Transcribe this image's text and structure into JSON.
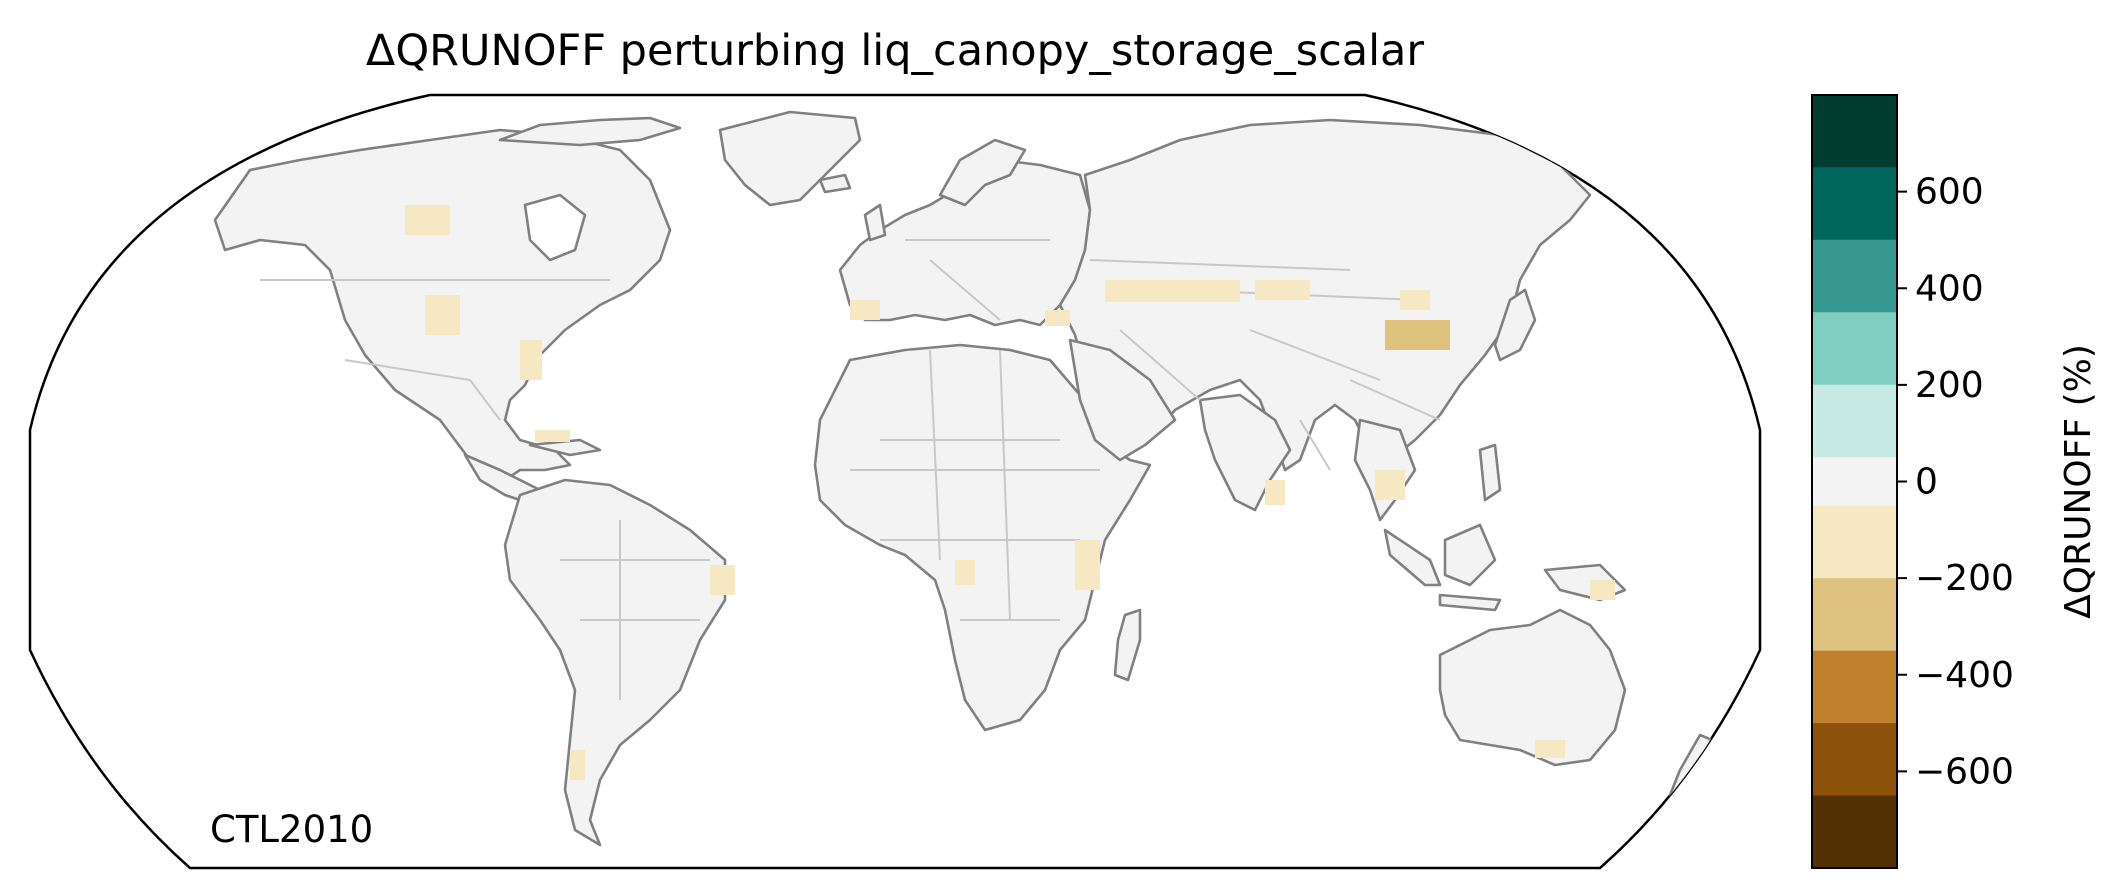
{
  "title": "ΔQRUNOFF perturbing liq_canopy_storage_scalar",
  "annotation": "CTL2010",
  "colorbar": {
    "label": "ΔQRUNOFF (%)",
    "range": [
      -800,
      800
    ],
    "ticks": [
      {
        "value": 600,
        "label": "600"
      },
      {
        "value": 400,
        "label": "400"
      },
      {
        "value": 200,
        "label": "200"
      },
      {
        "value": 0,
        "label": "0"
      },
      {
        "value": -200,
        "label": "−200"
      },
      {
        "value": -400,
        "label": "−400"
      },
      {
        "value": -600,
        "label": "−600"
      }
    ],
    "bins": [
      {
        "min": 650,
        "max": 800,
        "color": "#003c30"
      },
      {
        "min": 500,
        "max": 650,
        "color": "#01665e"
      },
      {
        "min": 350,
        "max": 500,
        "color": "#35978f"
      },
      {
        "min": 200,
        "max": 350,
        "color": "#80cdc1"
      },
      {
        "min": 50,
        "max": 200,
        "color": "#c7eae5"
      },
      {
        "min": -50,
        "max": 50,
        "color": "#f3f3f3"
      },
      {
        "min": -200,
        "max": -50,
        "color": "#f6e8c3"
      },
      {
        "min": -350,
        "max": -200,
        "color": "#dfc27d"
      },
      {
        "min": -500,
        "max": -350,
        "color": "#bf812d"
      },
      {
        "min": -650,
        "max": -500,
        "color": "#8c510a"
      },
      {
        "min": -800,
        "max": -650,
        "color": "#543005"
      }
    ]
  },
  "map": {
    "projection": "Robinson",
    "extent": "global",
    "coastline_color": "#808080",
    "border_color": "#c8c8c8",
    "land_color": "#f3f3f3",
    "notable_regions": [
      {
        "name": "North China Plain",
        "bin": "-350 to -200"
      },
      {
        "name": "Central Asia belt",
        "bin": "-200 to -50"
      },
      {
        "name": "Canadian Prairies",
        "bin": "-200 to -50"
      },
      {
        "name": "US Great Plains",
        "bin": "-200 to -50"
      }
    ]
  }
}
